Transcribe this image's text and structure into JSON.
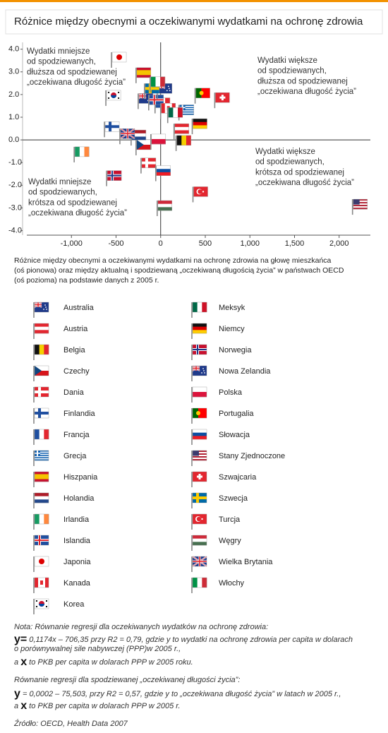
{
  "chart_data": {
    "type": "scatter",
    "title": "Różnice między obecnymi a oczekiwanymi wydatkami na ochronę zdrowia",
    "annotations": [
      {
        "lines": [
          "Wydatki mniejsze",
          "od spodziewanych,",
          "dłuższa od spodziewanej",
          "„oczekiwana długość życia”"
        ]
      },
      {
        "lines": [
          "Wydatki większe",
          "od spodziewanych,",
          "dłuższa od spodziewanej",
          "„oczekiwana długość życia”"
        ]
      },
      {
        "lines": [
          "Wydatki większe",
          "od spodziewanych,",
          "krótsza od spodziewanej",
          "„oczekiwana długość życia”"
        ]
      },
      {
        "lines": [
          "Wydatki mniejsze",
          "od spodziewanych,",
          "krótsza od spodziewanej",
          "„oczekiwana długość życia”"
        ]
      }
    ],
    "xlim": [
      -1500,
      2350
    ],
    "ylim": [
      -4.2,
      4.3
    ],
    "xticks": [
      {
        "value": -1000,
        "label": "-1,000"
      },
      -500,
      0,
      500,
      {
        "value": 1000,
        "label": "1,000"
      },
      {
        "value": 1500,
        "label": "1,500"
      },
      {
        "value": 2000,
        "label": "2,000"
      }
    ],
    "yticks": [
      {
        "value": 4,
        "label": "4.0"
      },
      {
        "value": 3,
        "label": "3.0"
      },
      {
        "value": 2,
        "label": "2.0"
      },
      {
        "value": 1,
        "label": "1.0"
      },
      {
        "value": 0,
        "label": "0.0"
      },
      {
        "value": -1,
        "label": "-1.0"
      },
      {
        "value": -2,
        "label": "-2.0"
      },
      {
        "value": -3,
        "label": "-3.0"
      },
      {
        "value": -4,
        "label": "-4.0"
      }
    ],
    "series": [
      {
        "name": "Australia",
        "x": [
          -252
        ],
        "y": [
          1.36
        ]
      },
      {
        "name": "Austria",
        "x": [
          150
        ],
        "y": [
          0.03
        ]
      },
      {
        "name": "Belgia",
        "x": [
          173
        ],
        "y": [
          -0.49
        ]
      },
      {
        "name": "Czechy",
        "x": [
          -276
        ],
        "y": [
          -0.68
        ]
      },
      {
        "name": "Dania",
        "x": [
          -220
        ],
        "y": [
          -1.48
        ]
      },
      {
        "name": "Finlandia",
        "x": [
          -630
        ],
        "y": [
          0.12
        ]
      },
      {
        "name": "Francja",
        "x": [
          -63
        ],
        "y": [
          1.17
        ]
      },
      {
        "name": "Grecja",
        "x": [
          205
        ],
        "y": [
          0.86
        ]
      },
      {
        "name": "Hiszpania",
        "x": [
          -276
        ],
        "y": [
          2.5
        ]
      },
      {
        "name": "Holandia",
        "x": [
          -331
        ],
        "y": [
          -0.25
        ]
      },
      {
        "name": "Irlandia",
        "x": [
          -969
        ],
        "y": [
          -0.99
        ]
      },
      {
        "name": "Islandia",
        "x": [
          -134
        ],
        "y": [
          1.3
        ]
      },
      {
        "name": "Japonia",
        "x": [
          -551
        ],
        "y": [
          3.18
        ]
      },
      {
        "name": "Kanada",
        "x": [
          0
        ],
        "y": [
          0.93
        ]
      },
      {
        "name": "Korea",
        "x": [
          -614
        ],
        "y": [
          1.5
        ]
      },
      {
        "name": "Meksyk",
        "x": [
          79
        ],
        "y": [
          0.74
        ]
      },
      {
        "name": "Niemcy",
        "x": [
          354
        ],
        "y": [
          0.25
        ]
      },
      {
        "name": "Norwegia",
        "x": [
          -606
        ],
        "y": [
          -2.04
        ]
      },
      {
        "name": "Nowa Zelandia",
        "x": [
          -39
        ],
        "y": [
          1.8
        ]
      },
      {
        "name": "Polska",
        "x": [
          -110
        ],
        "y": [
          -0.43
        ]
      },
      {
        "name": "Portugalia",
        "x": [
          386
        ],
        "y": [
          1.6
        ]
      },
      {
        "name": "Słowacja",
        "x": [
          -55
        ],
        "y": [
          -1.82
        ]
      },
      {
        "name": "Stany Zjednoczone",
        "x": [
          2150
        ],
        "y": [
          -3.3
        ]
      },
      {
        "name": "Szwajcaria",
        "x": [
          606
        ],
        "y": [
          1.4
        ]
      },
      {
        "name": "Szwecja",
        "x": [
          -181
        ],
        "y": [
          1.8
        ]
      },
      {
        "name": "Turcja",
        "x": [
          362
        ],
        "y": [
          -2.75
        ]
      },
      {
        "name": "Węgry",
        "x": [
          -39
        ],
        "y": [
          -3.36
        ]
      },
      {
        "name": "Wielka Brytania",
        "x": [
          -457
        ],
        "y": [
          -0.19
        ]
      },
      {
        "name": "Włochy",
        "x": [
          -118
        ],
        "y": [
          2.1
        ]
      }
    ]
  },
  "caption": [
    "Różnice między obecnymi a oczekiwanymi wydatkami na ochronę zdrowia na głowę mieszkańca",
    "(oś pionowa) oraz między aktualną i spodziewaną „oczekiwaną długością życia” w państwach OECD",
    "(oś pozioma) na podstawie danych z 2005 r."
  ],
  "notes": [
    [
      {
        "text": "Nota: Równanie regresji dla oczekiwanych wydatków na ochronę zdrowia:"
      }
    ],
    [
      {
        "text": "y=",
        "emphasis": true
      },
      {
        "text": " 0,1174x – 706,35 przy R2 = 0,79, gdzie y to wydatki na ochronę zdrowia per capita w dolarach"
      }
    ],
    [
      {
        "text": "o porównywalnej sile nabywczej (PPP)w 2005 r.,"
      }
    ],
    [
      {
        "text": "a "
      },
      {
        "text": "x",
        "emphasis": true
      },
      {
        "text": " to PKB per capita w dolarach PPP w 2005 roku."
      }
    ],
    [
      {
        "text": "Równanie regresji dla spodziewanej „oczekiwanej długości życia”:"
      }
    ],
    [
      {
        "text": "y",
        "emphasis": true
      },
      {
        "text": " = 0,0002 – 75,503, przy R2 = 0,57, gdzie y to „oczekiwana długość życia” w latach w 2005 r.,"
      }
    ],
    [
      {
        "text": "a "
      },
      {
        "text": "x",
        "emphasis": true
      },
      {
        "text": " to PKB per capita w dolarach PPP w 2005 r."
      }
    ],
    [
      {
        "text": "Źródło: OECD, Health Data 2007"
      }
    ]
  ]
}
